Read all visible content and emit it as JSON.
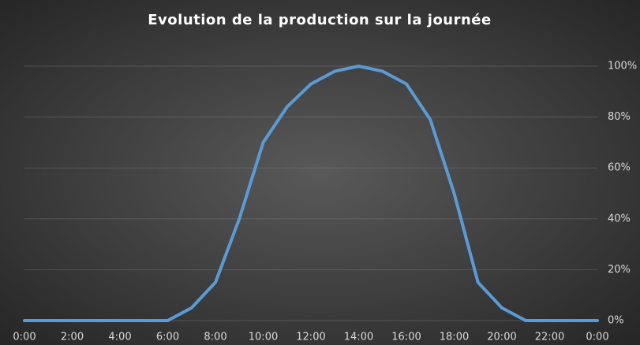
{
  "chart_data": {
    "type": "line",
    "title": "Evolution de la production sur la journée",
    "categories": [
      "0:00",
      null,
      "2:00",
      null,
      "4:00",
      null,
      "6:00",
      null,
      "8:00",
      null,
      "10:00",
      null,
      "12:00",
      null,
      "14:00",
      null,
      "16:00",
      null,
      "18:00",
      null,
      "20:00",
      null,
      "22:00",
      null,
      "0:00"
    ],
    "series": [
      {
        "color": "#5b9bd5",
        "values": [
          0,
          0,
          0,
          0,
          0,
          0,
          0,
          5,
          15,
          40,
          70,
          84,
          93,
          98,
          100,
          98,
          93,
          79,
          50,
          15,
          5,
          0,
          0,
          0,
          0
        ]
      }
    ],
    "ylim": [
      0,
      100
    ],
    "yticks": [
      {
        "value": 0,
        "label": "0%"
      },
      {
        "value": 20,
        "label": "20%"
      },
      {
        "value": 40,
        "label": "40%"
      },
      {
        "value": 60,
        "label": "60%"
      },
      {
        "value": 80,
        "label": "80%"
      },
      {
        "value": 100,
        "label": "100%"
      }
    ],
    "grid": true
  }
}
